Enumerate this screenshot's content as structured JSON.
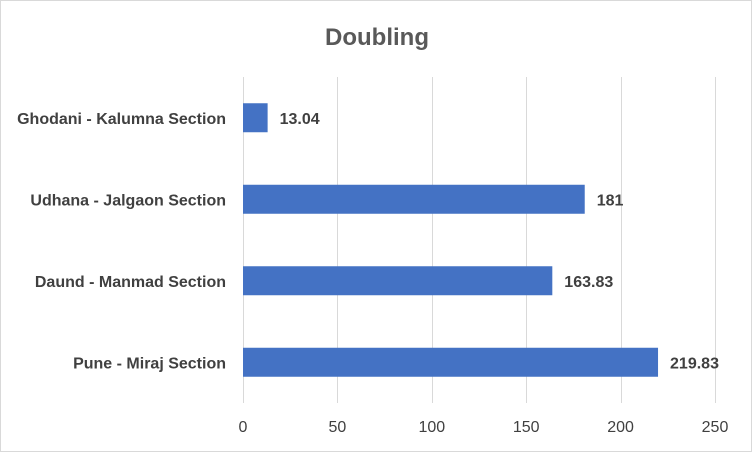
{
  "chart_data": {
    "type": "bar",
    "orientation": "horizontal",
    "title": "Doubling",
    "categories": [
      "Ghodani - Kalumna Section",
      "Udhana - Jalgaon Section",
      "Daund - Manmad Section",
      "Pune - Miraj Section"
    ],
    "values": [
      13.04,
      181,
      163.83,
      219.83
    ],
    "value_labels": [
      "13.04",
      "181",
      "163.83",
      "219.83"
    ],
    "xlim": [
      0,
      250
    ],
    "x_ticks": [
      0,
      50,
      100,
      150,
      200,
      250
    ],
    "x_tick_labels": [
      "0",
      "50",
      "100",
      "150",
      "200",
      "250"
    ],
    "grid": "vertical",
    "legend": "none",
    "bar_color": "#4472c4"
  }
}
